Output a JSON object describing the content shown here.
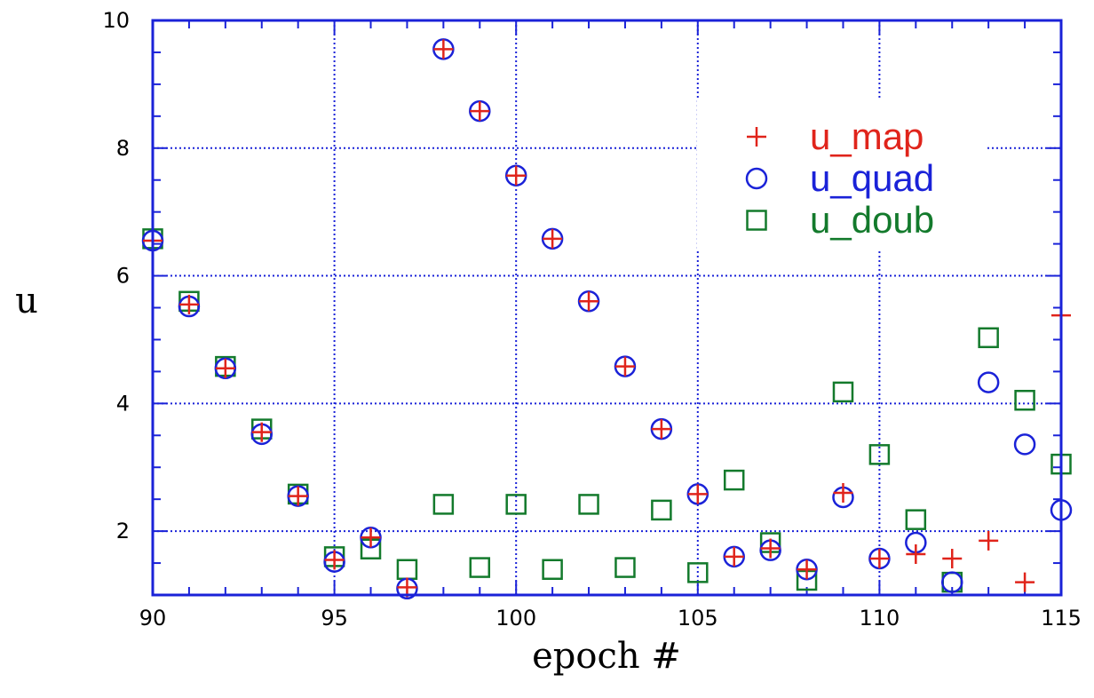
{
  "chart_data": {
    "type": "scatter",
    "xlabel": "epoch #",
    "ylabel": "u",
    "xlim": [
      90,
      115
    ],
    "ylim": [
      1,
      10
    ],
    "x_ticks": [
      90,
      95,
      100,
      105,
      110,
      115
    ],
    "y_ticks": [
      2,
      4,
      6,
      8,
      10
    ],
    "grid": true,
    "legend_position": "top-right",
    "x": [
      90,
      91,
      92,
      93,
      94,
      95,
      96,
      97,
      98,
      99,
      100,
      101,
      102,
      103,
      104,
      105,
      106,
      107,
      108,
      109,
      110,
      111,
      112,
      113,
      114,
      115
    ],
    "series": [
      {
        "name": "u_map",
        "marker": "plus",
        "color": "#e0241b",
        "values": [
          6.55,
          5.55,
          4.55,
          3.55,
          2.55,
          1.55,
          1.9,
          1.12,
          9.55,
          8.58,
          7.57,
          6.58,
          5.6,
          4.58,
          3.6,
          2.58,
          1.6,
          1.73,
          1.4,
          2.6,
          1.57,
          1.64,
          1.57,
          1.85,
          1.2,
          5.38
        ]
      },
      {
        "name": "u_quad",
        "marker": "circle",
        "color": "#1a22d8",
        "values": [
          6.55,
          5.52,
          4.55,
          3.52,
          2.55,
          1.52,
          1.9,
          1.1,
          9.55,
          8.58,
          7.57,
          6.58,
          5.6,
          4.58,
          3.6,
          2.58,
          1.6,
          1.7,
          1.4,
          2.53,
          1.57,
          1.82,
          1.2,
          4.33,
          3.36,
          2.33
        ]
      },
      {
        "name": "u_doub",
        "marker": "square",
        "color": "#137a2c",
        "values": [
          6.58,
          5.6,
          4.58,
          3.6,
          2.58,
          1.6,
          1.72,
          1.4,
          2.42,
          1.43,
          2.42,
          1.4,
          2.42,
          1.43,
          2.33,
          1.35,
          2.8,
          1.82,
          1.23,
          4.18,
          3.2,
          2.18,
          1.2,
          5.03,
          4.05,
          3.05
        ]
      }
    ]
  }
}
